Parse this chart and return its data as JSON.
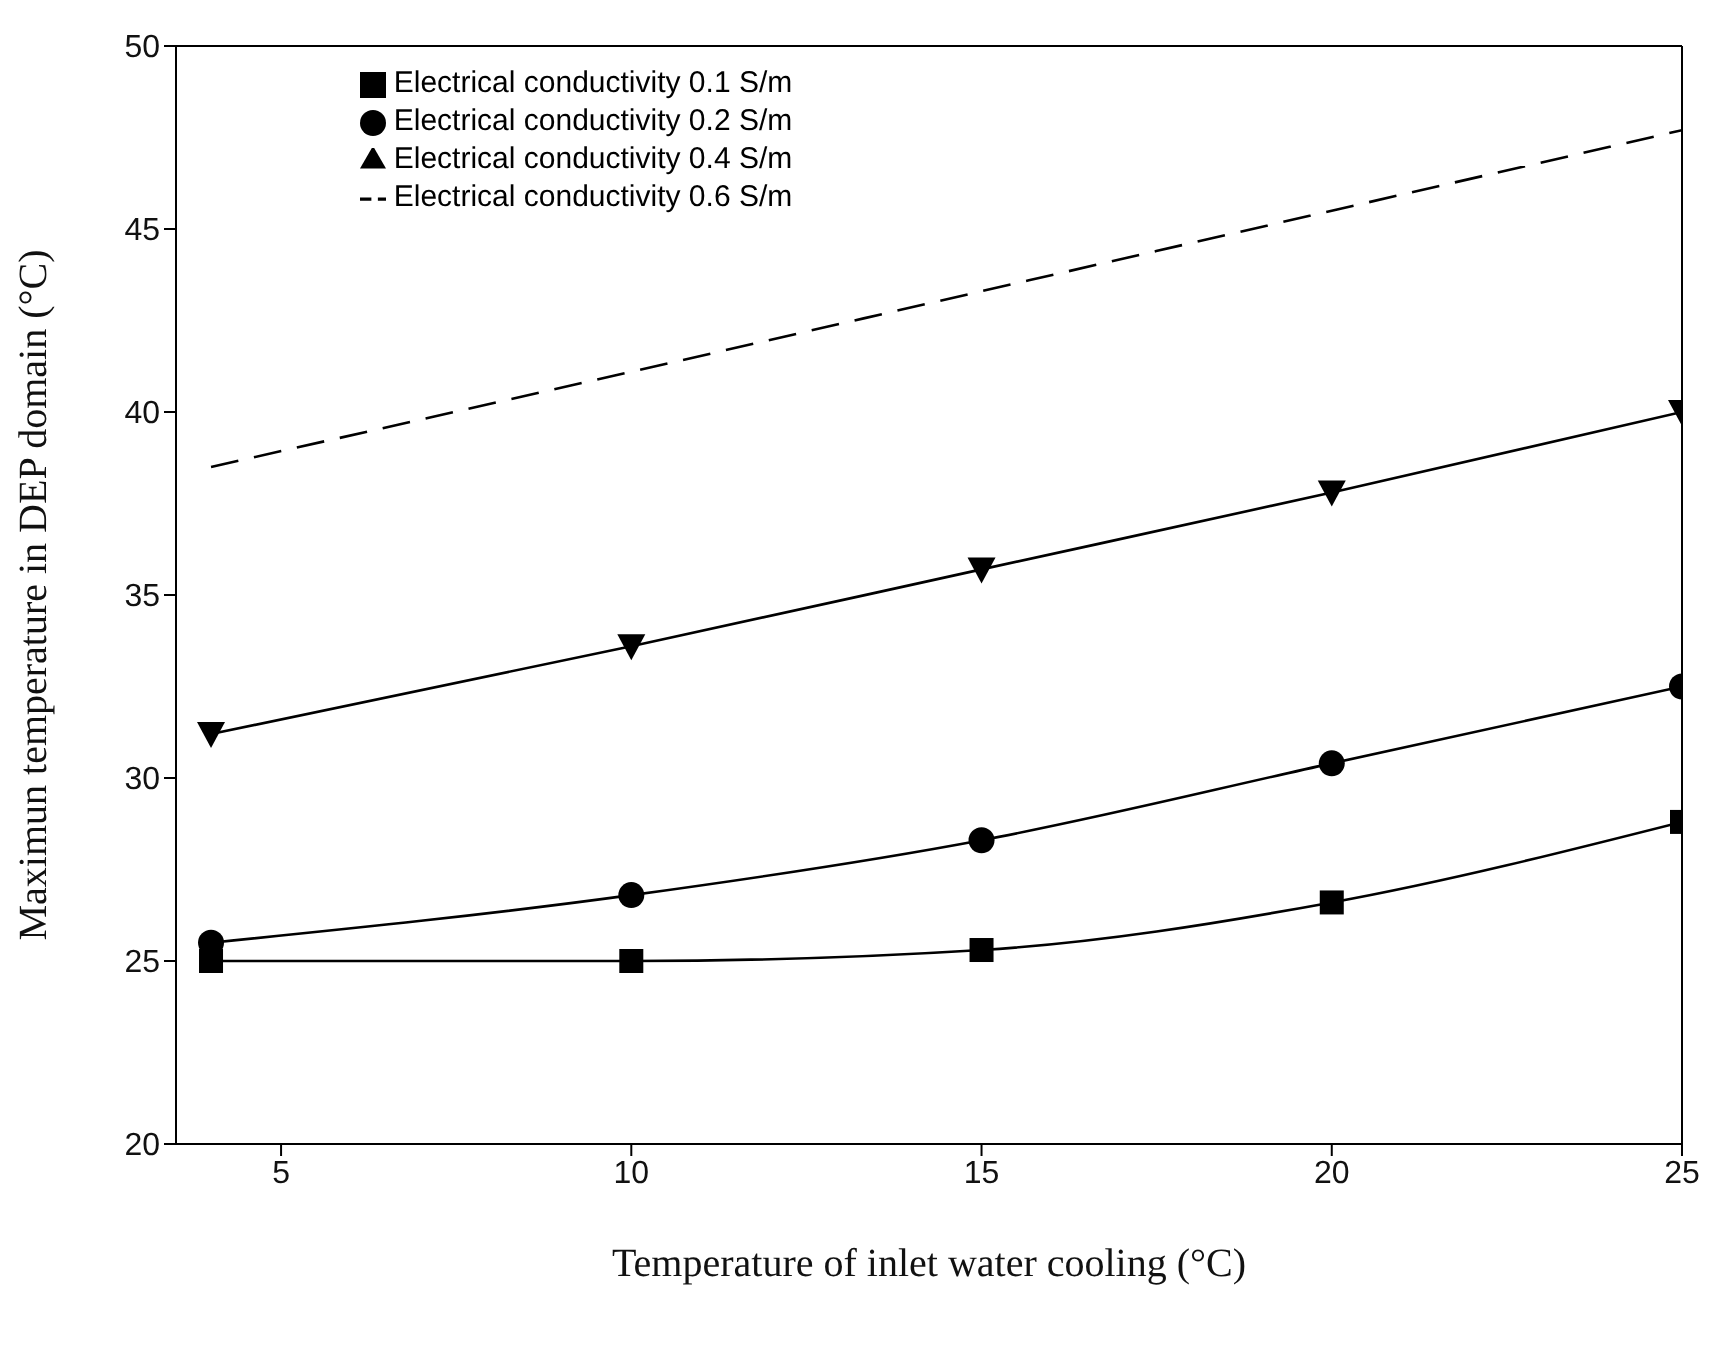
{
  "chart_data": {
    "type": "line",
    "xlabel": "Temperature of inlet water cooling (°C)",
    "ylabel": "Maximun temperature in DEP domain (°C)",
    "x": [
      4,
      10,
      15,
      20,
      25
    ],
    "xlim": [
      3.5,
      25
    ],
    "xticks": [
      5,
      10,
      15,
      20,
      25
    ],
    "ylim": [
      20,
      50
    ],
    "yticks": [
      20,
      25,
      30,
      35,
      40,
      45,
      50
    ],
    "grid": false,
    "legend": "top left",
    "series": [
      {
        "name": "Electrical conductivity 0.1 S/m",
        "color": "#000000",
        "marker": "square",
        "line_style": "solid",
        "values": [
          25.0,
          25.0,
          25.3,
          26.6,
          28.8
        ]
      },
      {
        "name": "Electrical conductivity 0.2 S/m",
        "color": "#000000",
        "marker": "circle",
        "line_style": "solid",
        "values": [
          25.5,
          26.8,
          28.3,
          30.4,
          32.5
        ]
      },
      {
        "name": "Electrical conductivity 0.4 S/m",
        "color": "#000000",
        "marker": "triangle",
        "line_style": "solid",
        "values": [
          31.2,
          33.6,
          35.7,
          37.8,
          40.0
        ]
      },
      {
        "name": "Electrical conductivity 0.6 S/m",
        "color": "#000000",
        "marker": "none",
        "line_style": "dashed",
        "values": [
          38.5,
          41.1,
          43.3,
          45.5,
          47.7
        ]
      }
    ]
  }
}
